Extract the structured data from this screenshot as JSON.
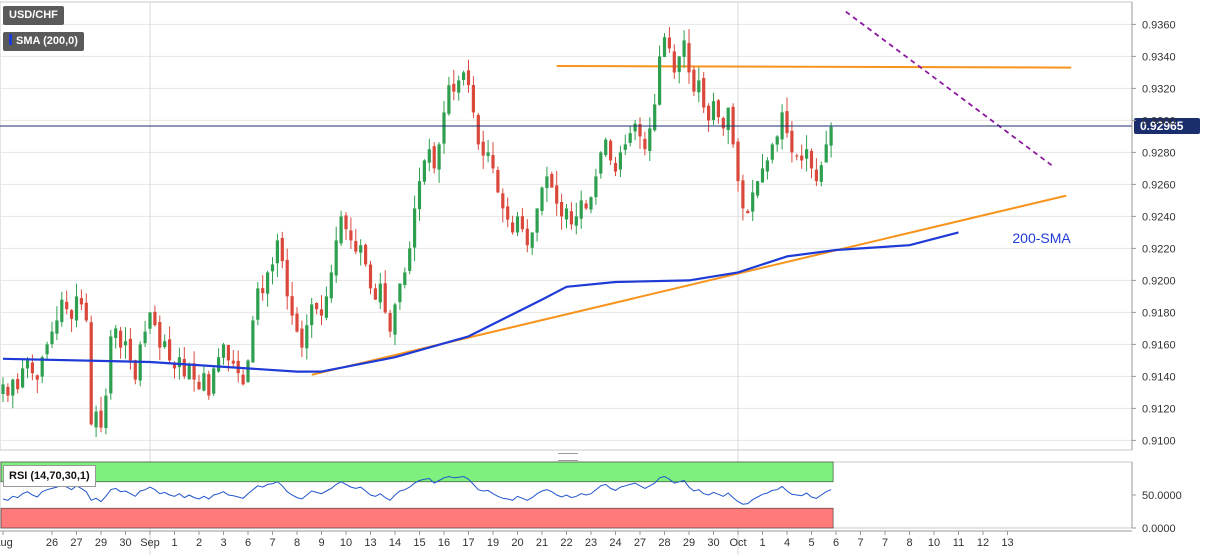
{
  "header": {
    "symbol": "USD/CHF",
    "indicator": "SMA (200,0)",
    "rsi_label": "RSI (14,70,30,1)"
  },
  "colors": {
    "bull": "#2e9e4f",
    "bear": "#d9483b",
    "sma": "#1f3bd6",
    "support": "#f7941d",
    "resistance_dashed": "#8b1a9e",
    "current_price_line": "#1a2e6e",
    "rsi_line": "#2255cc",
    "rsi_overbought": "#7ef07e",
    "rsi_oversold": "#ff7b7b"
  },
  "chart_data": {
    "type": "candlestick",
    "title": "USD/CHF",
    "current_price": 0.92965,
    "current_price_label": "0.92965",
    "ylim": [
      0.9094,
      0.9374
    ],
    "y_ticks": [
      0.91,
      0.912,
      0.914,
      0.916,
      0.918,
      0.92,
      0.922,
      0.924,
      0.926,
      0.928,
      0.93,
      0.932,
      0.934,
      0.936
    ],
    "y_tick_labels": [
      "0.9100",
      "0.9120",
      "0.9140",
      "0.9160",
      "0.9180",
      "0.9200",
      "0.9220",
      "0.9240",
      "0.9260",
      "0.9280",
      "0.9300",
      "0.9320",
      "0.9340",
      "0.9360"
    ],
    "x_ticks": [
      {
        "label": "Aug",
        "bar": 0
      },
      {
        "label": "26",
        "bar": 10
      },
      {
        "label": "27",
        "bar": 15
      },
      {
        "label": "29",
        "bar": 20
      },
      {
        "label": "30",
        "bar": 25
      },
      {
        "label": "Sep",
        "bar": 30
      },
      {
        "label": "1",
        "bar": 35
      },
      {
        "label": "2",
        "bar": 40
      },
      {
        "label": "3",
        "bar": 45
      },
      {
        "label": "6",
        "bar": 50
      },
      {
        "label": "7",
        "bar": 55
      },
      {
        "label": "8",
        "bar": 60
      },
      {
        "label": "9",
        "bar": 65
      },
      {
        "label": "10",
        "bar": 70
      },
      {
        "label": "13",
        "bar": 75
      },
      {
        "label": "14",
        "bar": 80
      },
      {
        "label": "15",
        "bar": 85
      },
      {
        "label": "16",
        "bar": 90
      },
      {
        "label": "17",
        "bar": 95
      },
      {
        "label": "19",
        "bar": 100
      },
      {
        "label": "20",
        "bar": 105
      },
      {
        "label": "21",
        "bar": 110
      },
      {
        "label": "22",
        "bar": 115
      },
      {
        "label": "23",
        "bar": 120
      },
      {
        "label": "24",
        "bar": 125
      },
      {
        "label": "27",
        "bar": 130
      },
      {
        "label": "28",
        "bar": 135
      },
      {
        "label": "29",
        "bar": 140
      },
      {
        "label": "30",
        "bar": 145
      },
      {
        "label": "Oct",
        "bar": 150
      },
      {
        "label": "1",
        "bar": 155
      },
      {
        "label": "4",
        "bar": 160
      },
      {
        "label": "5",
        "bar": 165
      },
      {
        "label": "6",
        "bar": 170
      },
      {
        "label": "7",
        "bar": 175
      },
      {
        "label": "7",
        "bar": 180
      },
      {
        "label": "8",
        "bar": 185
      },
      {
        "label": "10",
        "bar": 190
      },
      {
        "label": "11",
        "bar": 195
      },
      {
        "label": "12",
        "bar": 200
      },
      {
        "label": "13",
        "bar": 205
      }
    ],
    "vertical_gridlines_at_bars": [
      30,
      150
    ],
    "closes": [
      0.9135,
      0.9128,
      0.9138,
      0.9132,
      0.9145,
      0.915,
      0.9142,
      0.9138,
      0.9152,
      0.916,
      0.9168,
      0.9175,
      0.9188,
      0.9182,
      0.9176,
      0.919,
      0.9185,
      0.9175,
      0.911,
      0.9118,
      0.9108,
      0.9128,
      0.9165,
      0.917,
      0.9158,
      0.9162,
      0.915,
      0.9138,
      0.916,
      0.9168,
      0.918,
      0.9172,
      0.9158,
      0.9162,
      0.915,
      0.9145,
      0.9152,
      0.914,
      0.9148,
      0.9138,
      0.9132,
      0.9142,
      0.9128,
      0.9145,
      0.9152,
      0.916,
      0.915,
      0.9148,
      0.9142,
      0.9135,
      0.915,
      0.9175,
      0.9195,
      0.9192,
      0.9205,
      0.921,
      0.9225,
      0.9212,
      0.919,
      0.9178,
      0.9168,
      0.9158,
      0.9172,
      0.9185,
      0.9182,
      0.9178,
      0.919,
      0.9205,
      0.9225,
      0.924,
      0.9232,
      0.9225,
      0.9218,
      0.9222,
      0.921,
      0.9195,
      0.9188,
      0.9198,
      0.918,
      0.9168,
      0.9185,
      0.9198,
      0.9205,
      0.922,
      0.9245,
      0.9262,
      0.9275,
      0.9282,
      0.927,
      0.9285,
      0.9305,
      0.9322,
      0.9318,
      0.9325,
      0.933,
      0.9322,
      0.9305,
      0.9285,
      0.9278,
      0.928,
      0.927,
      0.9255,
      0.9245,
      0.9238,
      0.923,
      0.924,
      0.9232,
      0.9222,
      0.923,
      0.9245,
      0.9258,
      0.9265,
      0.9258,
      0.9248,
      0.924,
      0.9245,
      0.9235,
      0.924,
      0.925,
      0.9245,
      0.9252,
      0.9265,
      0.928,
      0.9288,
      0.9275,
      0.9268,
      0.928,
      0.9285,
      0.9292,
      0.9298,
      0.929,
      0.9282,
      0.9295,
      0.931,
      0.934,
      0.9352,
      0.9345,
      0.933,
      0.934,
      0.935,
      0.933,
      0.9318,
      0.9325,
      0.9308,
      0.93,
      0.9312,
      0.9302,
      0.9295,
      0.9308,
      0.9285,
      0.9262,
      0.9245,
      0.9242,
      0.9255,
      0.9262,
      0.927,
      0.9275,
      0.9285,
      0.929,
      0.9305,
      0.9292,
      0.928,
      0.9278,
      0.9275,
      0.9282,
      0.927,
      0.9262,
      0.9272,
      0.9285,
      0.9296
    ],
    "sma_200": [
      [
        0,
        0.9151
      ],
      [
        30,
        0.9149
      ],
      [
        60,
        0.9143
      ],
      [
        65,
        0.9143
      ],
      [
        80,
        0.9152
      ],
      [
        95,
        0.9165
      ],
      [
        110,
        0.9188
      ],
      [
        115,
        0.9196
      ],
      [
        125,
        0.9199
      ],
      [
        140,
        0.92
      ],
      [
        150,
        0.9205
      ],
      [
        160,
        0.9215
      ],
      [
        170,
        0.9219
      ],
      [
        185,
        0.9222
      ],
      [
        195,
        0.923
      ]
    ],
    "annotations": [
      {
        "type": "label",
        "text": "200-SMA",
        "bar": 206,
        "y": 0.9226
      },
      {
        "type": "ascending_support",
        "from": [
          63,
          0.9141
        ],
        "to": [
          217,
          0.9253
        ]
      },
      {
        "type": "horizontal_resistance",
        "from": [
          113,
          0.9334
        ],
        "to": [
          218,
          0.9333
        ]
      },
      {
        "type": "descending_resistance",
        "from": [
          172,
          0.9368
        ],
        "to": [
          214,
          0.9272
        ]
      }
    ],
    "rsi": {
      "label": "RSI (14,70,30,1)",
      "period": 14,
      "overbought": 70,
      "oversold": 30,
      "ylim": [
        0,
        100
      ],
      "y_ticks": [
        0,
        50
      ],
      "y_tick_labels": [
        "0.0000",
        "50.0000"
      ],
      "values": [
        44,
        42,
        48,
        46,
        52,
        55,
        50,
        47,
        55,
        58,
        60,
        62,
        66,
        62,
        58,
        64,
        60,
        55,
        42,
        45,
        40,
        48,
        58,
        60,
        55,
        56,
        52,
        48,
        56,
        58,
        62,
        58,
        52,
        54,
        50,
        48,
        52,
        46,
        50,
        46,
        44,
        48,
        44,
        50,
        52,
        55,
        50,
        49,
        47,
        45,
        52,
        58,
        64,
        62,
        66,
        67,
        70,
        64,
        55,
        50,
        46,
        44,
        50,
        56,
        54,
        52,
        56,
        60,
        66,
        70,
        66,
        62,
        60,
        62,
        56,
        50,
        48,
        52,
        46,
        42,
        50,
        56,
        58,
        62,
        68,
        72,
        74,
        75,
        68,
        72,
        76,
        78,
        76,
        77,
        78,
        74,
        66,
        58,
        56,
        57,
        52,
        48,
        45,
        44,
        42,
        48,
        45,
        42,
        46,
        52,
        56,
        58,
        55,
        50,
        47,
        50,
        46,
        48,
        52,
        50,
        52,
        58,
        64,
        66,
        60,
        57,
        62,
        64,
        66,
        68,
        64,
        60,
        64,
        68,
        76,
        78,
        74,
        68,
        70,
        72,
        62,
        56,
        58,
        52,
        50,
        54,
        51,
        48,
        53,
        46,
        40,
        36,
        37,
        43,
        47,
        51,
        53,
        57,
        58,
        63,
        56,
        51,
        50,
        49,
        53,
        47,
        45,
        50,
        55,
        58
      ]
    }
  }
}
